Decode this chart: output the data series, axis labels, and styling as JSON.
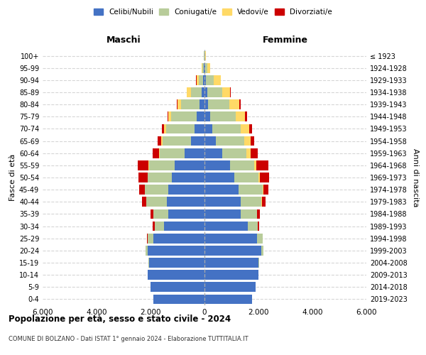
{
  "age_groups": [
    "0-4",
    "5-9",
    "10-14",
    "15-19",
    "20-24",
    "25-29",
    "30-34",
    "35-39",
    "40-44",
    "45-49",
    "50-54",
    "55-59",
    "60-64",
    "65-69",
    "70-74",
    "75-79",
    "80-84",
    "85-89",
    "90-94",
    "95-99",
    "100+"
  ],
  "birth_years": [
    "2019-2023",
    "2014-2018",
    "2009-2013",
    "2004-2008",
    "1999-2003",
    "1994-1998",
    "1989-1993",
    "1984-1988",
    "1979-1983",
    "1974-1978",
    "1969-1973",
    "1964-1968",
    "1959-1963",
    "1954-1958",
    "1949-1953",
    "1944-1948",
    "1939-1943",
    "1934-1938",
    "1929-1933",
    "1924-1928",
    "≤ 1923"
  ],
  "male": {
    "celibi": [
      1900,
      2000,
      2100,
      2050,
      2100,
      1900,
      1500,
      1350,
      1400,
      1350,
      1200,
      1100,
      750,
      500,
      380,
      280,
      180,
      100,
      50,
      30,
      10
    ],
    "coniugati": [
      0,
      5,
      10,
      30,
      80,
      200,
      350,
      550,
      750,
      850,
      900,
      950,
      900,
      1050,
      1050,
      950,
      700,
      400,
      150,
      50,
      10
    ],
    "vedovi": [
      0,
      0,
      0,
      0,
      5,
      0,
      0,
      5,
      5,
      10,
      15,
      20,
      30,
      60,
      80,
      100,
      120,
      150,
      100,
      30,
      5
    ],
    "divorziati": [
      0,
      0,
      0,
      0,
      5,
      30,
      80,
      100,
      150,
      200,
      320,
      400,
      250,
      120,
      80,
      50,
      30,
      20,
      10,
      5,
      0
    ]
  },
  "female": {
    "nubili": [
      1750,
      1900,
      2000,
      2000,
      2100,
      1950,
      1600,
      1350,
      1350,
      1250,
      1100,
      950,
      650,
      420,
      300,
      200,
      130,
      100,
      50,
      30,
      10
    ],
    "coniugate": [
      0,
      5,
      10,
      30,
      80,
      200,
      380,
      600,
      750,
      900,
      900,
      900,
      900,
      1050,
      1050,
      950,
      800,
      550,
      300,
      80,
      20
    ],
    "vedove": [
      0,
      0,
      0,
      0,
      5,
      0,
      5,
      10,
      20,
      30,
      50,
      80,
      150,
      250,
      320,
      350,
      350,
      300,
      250,
      100,
      20
    ],
    "divorziate": [
      0,
      0,
      0,
      0,
      5,
      20,
      50,
      80,
      150,
      200,
      350,
      450,
      280,
      120,
      100,
      80,
      50,
      30,
      10,
      5,
      0
    ]
  },
  "colors": {
    "celibi": "#4472C4",
    "coniugati": "#B8CC9A",
    "vedovi": "#FFD966",
    "divorziati": "#CC0000"
  },
  "legend_labels": [
    "Celibi/Nubili",
    "Coniugati/e",
    "Vedovi/e",
    "Divorziati/e"
  ],
  "title": "Popolazione per età, sesso e stato civile - 2024",
  "subtitle": "COMUNE DI BOLZANO - Dati ISTAT 1° gennaio 2024 - Elaborazione TUTTITALIA.IT",
  "label_maschi": "Maschi",
  "label_femmine": "Femmine",
  "ylabel_left": "Fasce di età",
  "ylabel_right": "Anni di nascita",
  "xlim": 6000,
  "xticks": [
    -6000,
    -4000,
    -2000,
    0,
    2000,
    4000,
    6000
  ],
  "xticklabels": [
    "6.000",
    "4.000",
    "2.000",
    "0",
    "2.000",
    "4.000",
    "6.000"
  ],
  "background_color": "#FFFFFF",
  "grid_color": "#CCCCCC"
}
